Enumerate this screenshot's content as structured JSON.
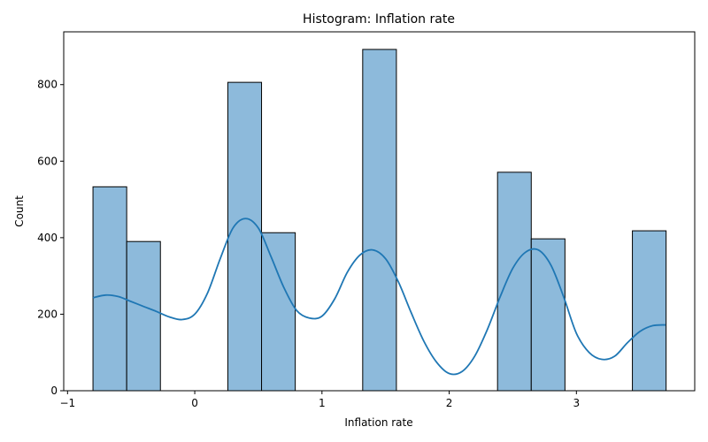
{
  "chart_data": {
    "type": "histogram",
    "title": "Histogram: Inflation rate",
    "xlabel": "Inflation rate",
    "ylabel": "Count",
    "xlim": [
      -1.03,
      3.93
    ],
    "ylim": [
      0,
      938
    ],
    "xticks": [
      -1,
      0,
      1,
      2,
      3
    ],
    "yticks": [
      0,
      200,
      400,
      600,
      800
    ],
    "bins": [
      {
        "x0": -0.8,
        "x1": -0.535,
        "count": 533
      },
      {
        "x0": -0.535,
        "x1": -0.27,
        "count": 390
      },
      {
        "x0": -0.27,
        "x1": -0.005,
        "count": 0
      },
      {
        "x0": -0.005,
        "x1": 0.26,
        "count": 0
      },
      {
        "x0": 0.26,
        "x1": 0.525,
        "count": 806
      },
      {
        "x0": 0.525,
        "x1": 0.79,
        "count": 413
      },
      {
        "x0": 0.79,
        "x1": 1.055,
        "count": 0
      },
      {
        "x0": 1.055,
        "x1": 1.32,
        "count": 0
      },
      {
        "x0": 1.32,
        "x1": 1.585,
        "count": 892
      },
      {
        "x0": 1.585,
        "x1": 1.85,
        "count": 0
      },
      {
        "x0": 1.85,
        "x1": 2.115,
        "count": 0
      },
      {
        "x0": 2.115,
        "x1": 2.38,
        "count": 0
      },
      {
        "x0": 2.38,
        "x1": 2.645,
        "count": 571
      },
      {
        "x0": 2.645,
        "x1": 2.91,
        "count": 397
      },
      {
        "x0": 2.91,
        "x1": 3.175,
        "count": 0
      },
      {
        "x0": 3.175,
        "x1": 3.44,
        "count": 0
      },
      {
        "x0": 3.44,
        "x1": 3.705,
        "count": 418
      }
    ],
    "kde": {
      "x": [
        -0.8,
        -0.7,
        -0.6,
        -0.5,
        -0.4,
        -0.3,
        -0.2,
        -0.1,
        0.0,
        0.1,
        0.2,
        0.3,
        0.4,
        0.5,
        0.6,
        0.7,
        0.8,
        0.9,
        1.0,
        1.1,
        1.2,
        1.3,
        1.4,
        1.5,
        1.6,
        1.7,
        1.8,
        1.9,
        2.0,
        2.1,
        2.2,
        2.3,
        2.4,
        2.5,
        2.6,
        2.7,
        2.8,
        2.9,
        3.0,
        3.1,
        3.2,
        3.3,
        3.4,
        3.5,
        3.6,
        3.7
      ],
      "y": [
        243,
        250,
        246,
        233,
        220,
        207,
        193,
        186,
        200,
        255,
        345,
        425,
        450,
        425,
        350,
        270,
        210,
        190,
        195,
        240,
        310,
        355,
        368,
        345,
        285,
        205,
        130,
        75,
        45,
        50,
        90,
        160,
        245,
        320,
        362,
        368,
        328,
        245,
        150,
        100,
        82,
        90,
        125,
        155,
        170,
        172
      ]
    },
    "colors": {
      "bar_fill": "#8dbadb",
      "bar_edge": "#000000",
      "kde_line": "#1f77b4"
    },
    "grid": false,
    "legend": "none"
  }
}
